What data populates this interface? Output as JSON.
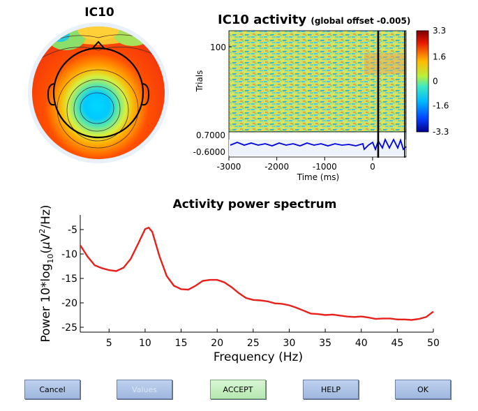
{
  "topo": {
    "title": "IC10"
  },
  "erp_image": {
    "title": "IC10 activity",
    "subtitle": "(global offset -0.005)",
    "trials_label": "Trials",
    "trial_tick": "100",
    "colorbar_ticks": [
      "3.3",
      "1.6",
      "0",
      "-1.6",
      "-3.3"
    ],
    "colorbar_range": [
      -3.3,
      3.3
    ],
    "erp_ticks": [
      "0.7000",
      "-0.6000"
    ],
    "time_ticks": [
      "-3000",
      "-2000",
      "-1000",
      "0"
    ],
    "xlabel": "Time (ms)",
    "xlim": [
      -3000,
      700
    ],
    "event_time_ms": 0
  },
  "chart_data": {
    "type": "line",
    "title": "Activity power spectrum",
    "xlabel": "Frequency (Hz)",
    "ylabel_prefix": "Power 10*log",
    "ylabel_sub": "10",
    "ylabel_mid": "(",
    "ylabel_mu": "μ",
    "ylabel_v": "V",
    "ylabel_sup": "2",
    "ylabel_suffix": "/Hz)",
    "xlim": [
      1,
      50
    ],
    "ylim": [
      -26,
      -2
    ],
    "xticks": [
      5,
      10,
      15,
      20,
      25,
      30,
      35,
      40,
      45,
      50
    ],
    "yticks": [
      -5,
      -10,
      -15,
      -20,
      -25
    ],
    "series": [
      {
        "color": "#e8201c",
        "x": [
          1,
          2,
          3,
          4,
          5,
          6,
          7,
          8,
          9,
          10,
          10.5,
          11,
          12,
          13,
          14,
          15,
          16,
          17,
          18,
          19,
          20,
          21,
          22,
          23,
          24,
          25,
          26,
          27,
          28,
          29,
          30,
          31,
          32,
          33,
          34,
          35,
          36,
          37,
          38,
          39,
          40,
          41,
          42,
          43,
          44,
          45,
          46,
          47,
          48,
          49,
          50
        ],
        "y": [
          -8.2,
          -10.5,
          -12.3,
          -12.9,
          -13.3,
          -13.5,
          -12.8,
          -11.0,
          -8.0,
          -4.9,
          -4.6,
          -5.5,
          -10.5,
          -14.5,
          -16.5,
          -17.2,
          -17.3,
          -16.5,
          -15.5,
          -15.3,
          -15.3,
          -15.8,
          -16.8,
          -18.0,
          -19.0,
          -19.4,
          -19.5,
          -19.7,
          -20.1,
          -20.2,
          -20.5,
          -21.0,
          -21.6,
          -22.2,
          -22.3,
          -22.5,
          -22.4,
          -22.6,
          -22.8,
          -22.9,
          -22.8,
          -23.0,
          -23.3,
          -23.2,
          -23.2,
          -23.4,
          -23.4,
          -23.5,
          -23.3,
          -22.9,
          -21.8
        ]
      }
    ]
  },
  "buttons": {
    "cancel": "Cancel",
    "values": "Values",
    "accept": "ACCEPT",
    "help": "HELP",
    "ok": "OK"
  }
}
